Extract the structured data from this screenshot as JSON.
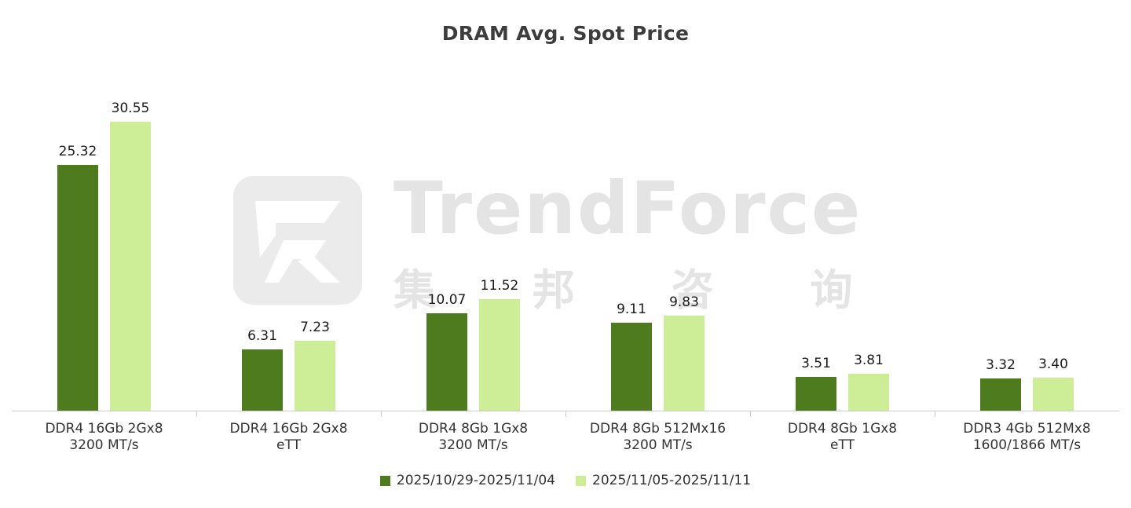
{
  "title": "DRAM Avg. Spot Price",
  "watermark": {
    "brand": "TrendForce",
    "brand_cn": "集 邦 咨 询"
  },
  "colors": {
    "series1": "#4e7b1d",
    "series2": "#cdee96",
    "axis": "#cccccc",
    "watermark": "#e4e4e4"
  },
  "chart_data": {
    "type": "bar",
    "title": "DRAM Avg. Spot Price",
    "categories": [
      "DDR4 16Gb 2Gx8\n3200 MT/s",
      "DDR4 16Gb 2Gx8\neTT",
      "DDR4 8Gb 1Gx8\n3200 MT/s",
      "DDR4 8Gb 512Mx16\n3200 MT/s",
      "DDR4 8Gb 1Gx8\neTT",
      "DDR3 4Gb 512Mx8\n1600/1866 MT/s"
    ],
    "series": [
      {
        "name": "2025/10/29-2025/11/04",
        "color": "#4e7b1d",
        "values": [
          25.32,
          6.31,
          10.07,
          9.11,
          3.51,
          3.32
        ]
      },
      {
        "name": "2025/11/05-2025/11/11",
        "color": "#cdee96",
        "values": [
          30.55,
          7.23,
          11.52,
          9.83,
          3.81,
          3.4
        ]
      }
    ],
    "ylim": [
      0,
      32
    ],
    "xlabel": "",
    "ylabel": "",
    "grid": false,
    "value_labels": true,
    "legend_position": "bottom"
  }
}
